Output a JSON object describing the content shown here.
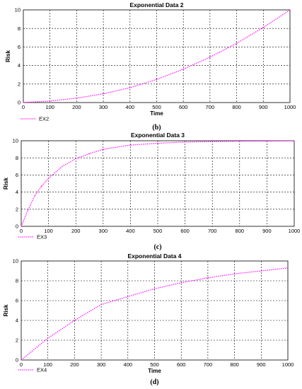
{
  "chart_data": [
    {
      "type": "line",
      "title": "Exponential Data 2",
      "xlabel": "Time",
      "ylabel": "Risk",
      "xlim": [
        0,
        1000
      ],
      "ylim": [
        0,
        10
      ],
      "xticks": [
        "0",
        "100",
        "200",
        "300",
        "400",
        "500",
        "600",
        "700",
        "800",
        "900",
        "1000"
      ],
      "yticks": [
        "0",
        "2",
        "4",
        "6",
        "8",
        "10"
      ],
      "grid": true,
      "legend_position": "bottom-left",
      "caption": "(b)",
      "series": [
        {
          "name": "EX2",
          "color": "#ff00ff",
          "style": "dotted",
          "x": [
            0,
            100,
            200,
            300,
            400,
            500,
            600,
            700,
            800,
            900,
            1000
          ],
          "values": [
            0,
            0.17,
            0.47,
            0.95,
            1.6,
            2.5,
            3.6,
            4.9,
            6.4,
            8.1,
            10
          ]
        }
      ]
    },
    {
      "type": "line",
      "title": "Exponential Data 3",
      "xlabel": "",
      "ylabel": "Risk",
      "xlim": [
        0,
        1000
      ],
      "ylim": [
        0,
        10
      ],
      "xticks": [
        "0",
        "100",
        "200",
        "300",
        "400",
        "500",
        "600",
        "700",
        "800",
        "900",
        "1000"
      ],
      "yticks": [
        "0",
        "2",
        "4",
        "6",
        "8",
        "10"
      ],
      "grid": true,
      "legend_position": "bottom-left",
      "caption": "(c)",
      "series": [
        {
          "name": "EX3",
          "color": "#ff00ff",
          "style": "dotted",
          "x": [
            0,
            25,
            50,
            75,
            100,
            150,
            200,
            250,
            300,
            400,
            500,
            600,
            700,
            800,
            900,
            1000
          ],
          "values": [
            0,
            1.9,
            3.6,
            4.7,
            5.6,
            7.0,
            7.9,
            8.5,
            9.0,
            9.5,
            9.7,
            9.85,
            9.9,
            9.95,
            9.97,
            10
          ]
        }
      ]
    },
    {
      "type": "line",
      "title": "Exponential Data 4",
      "xlabel": "Time",
      "ylabel": "Risk",
      "xlim": [
        0,
        1000
      ],
      "ylim": [
        0,
        10
      ],
      "xticks": [
        "0",
        "100",
        "200",
        "300",
        "400",
        "500",
        "600",
        "700",
        "800",
        "900",
        "1000"
      ],
      "yticks": [
        "0",
        "2",
        "4",
        "6",
        "8",
        "10"
      ],
      "grid": true,
      "legend_position": "bottom-left",
      "caption": "(d)",
      "series": [
        {
          "name": "EX4",
          "color": "#ff00ff",
          "style": "dotted",
          "x": [
            0,
            100,
            200,
            300,
            400,
            500,
            600,
            700,
            800,
            900,
            1000
          ],
          "values": [
            0,
            2.2,
            4.0,
            5.6,
            6.4,
            7.2,
            7.8,
            8.3,
            8.7,
            9.0,
            9.3
          ]
        }
      ]
    }
  ]
}
